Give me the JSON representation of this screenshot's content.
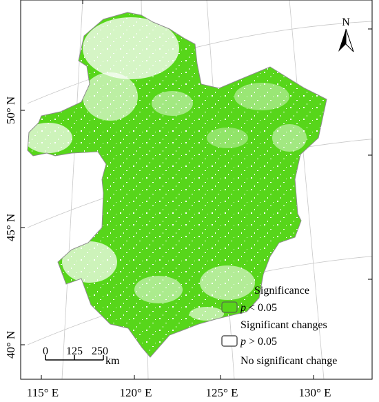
{
  "map": {
    "lat_labels": [
      "50° N",
      "45° N",
      "40° N"
    ],
    "lon_labels": [
      "115° E",
      "120° E",
      "125° E",
      "130° E"
    ],
    "north_arrow_label": "N"
  },
  "scale_bar": {
    "ticks": [
      "0",
      "125",
      "250"
    ],
    "unit": "km"
  },
  "legend": {
    "title": "Significance",
    "items": [
      {
        "symbol": "p",
        "condition": " < 0.05",
        "description": "Significant changes",
        "color": "#57d61a"
      },
      {
        "symbol": "p",
        "condition": " > 0.05",
        "description": "No significant change",
        "color": "#ffffff"
      }
    ]
  },
  "colors": {
    "significant": "#57d61a",
    "boundary": "#8c8c8c",
    "frame": "#000000",
    "graticule": "#c8c8c8"
  }
}
